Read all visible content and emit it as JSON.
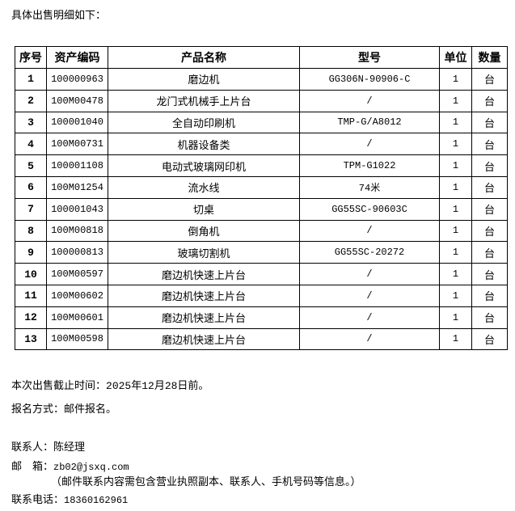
{
  "intro": "具体出售明细如下：",
  "table": {
    "headers": [
      "序号",
      "资产编码",
      "产品名称",
      "型号",
      "单位",
      "数量"
    ],
    "rows": [
      [
        "1",
        "100000963",
        "磨边机",
        "GG306N-90906-C",
        "1",
        "台"
      ],
      [
        "2",
        "100M00478",
        "龙门式机械手上片台",
        "/",
        "1",
        "台"
      ],
      [
        "3",
        "100001040",
        "全自动印刷机",
        "TMP-G/A8012",
        "1",
        "台"
      ],
      [
        "4",
        "100M00731",
        "机器设备类",
        "/",
        "1",
        "台"
      ],
      [
        "5",
        "100001108",
        "电动式玻璃网印机",
        "TPM-G1022",
        "1",
        "台"
      ],
      [
        "6",
        "100M01254",
        "流水线",
        "74米",
        "1",
        "台"
      ],
      [
        "7",
        "100001043",
        "切桌",
        "GG55SC-90603C",
        "1",
        "台"
      ],
      [
        "8",
        "100M00818",
        "倒角机",
        "/",
        "1",
        "台"
      ],
      [
        "9",
        "100000813",
        "玻璃切割机",
        "GG55SC-20272",
        "1",
        "台"
      ],
      [
        "10",
        "100M00597",
        "磨边机快速上片台",
        "/",
        "1",
        "台"
      ],
      [
        "11",
        "100M00602",
        "磨边机快速上片台",
        "/",
        "1",
        "台"
      ],
      [
        "12",
        "100M00601",
        "磨边机快速上片台",
        "/",
        "1",
        "台"
      ],
      [
        "13",
        "100M00598",
        "磨边机快速上片台",
        "/",
        "1",
        "台"
      ]
    ]
  },
  "footer": {
    "deadline_label": "本次出售截止时间：",
    "deadline_value": "2025年12月28日前。",
    "signup": "报名方式：邮件报名。",
    "contact": "联系人：陈经理",
    "email_label": "邮　箱：",
    "email_value": "zb02@jsxq.com",
    "email_note": "（邮件联系内容需包含营业执照副本、联系人、手机号码等信息。）",
    "phone_label": "联系电话：",
    "phone_value": "18360162961"
  }
}
